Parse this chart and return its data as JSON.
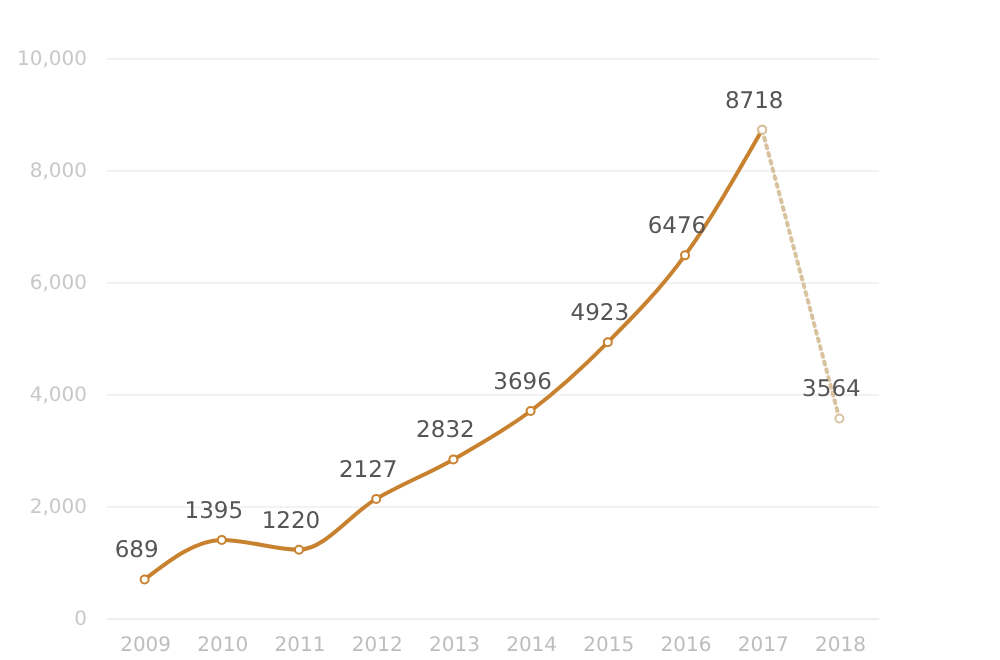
{
  "chart_data": {
    "type": "line",
    "categories": [
      "2009",
      "2010",
      "2011",
      "2012",
      "2013",
      "2014",
      "2015",
      "2016",
      "2017",
      "2018"
    ],
    "series": [
      {
        "color": "#c8812e",
        "line_style": "solid",
        "values": [
          689,
          1395,
          1220,
          2127,
          2832,
          3696,
          4923,
          6476,
          8718,
          null
        ],
        "value_labels": [
          "689",
          "1395",
          "1220",
          "2127",
          "2832",
          "3696",
          "4923",
          "6476",
          "8718",
          null
        ]
      },
      {
        "color": "#d9c39e",
        "line_style": "dotted",
        "values": [
          null,
          null,
          null,
          null,
          null,
          null,
          null,
          null,
          8718,
          3564
        ],
        "value_labels": [
          null,
          null,
          null,
          null,
          null,
          null,
          null,
          null,
          null,
          "3564"
        ]
      }
    ],
    "ylim": [
      0,
      10000
    ],
    "yticks": [
      {
        "value": 0,
        "label": "0"
      },
      {
        "value": 2000,
        "label": "2,000"
      },
      {
        "value": 4000,
        "label": "4,000"
      },
      {
        "value": 6000,
        "label": "6,000"
      },
      {
        "value": 8000,
        "label": "8,000"
      },
      {
        "value": 10000,
        "label": "10,000"
      }
    ],
    "grid": "y",
    "marker": "circle"
  }
}
